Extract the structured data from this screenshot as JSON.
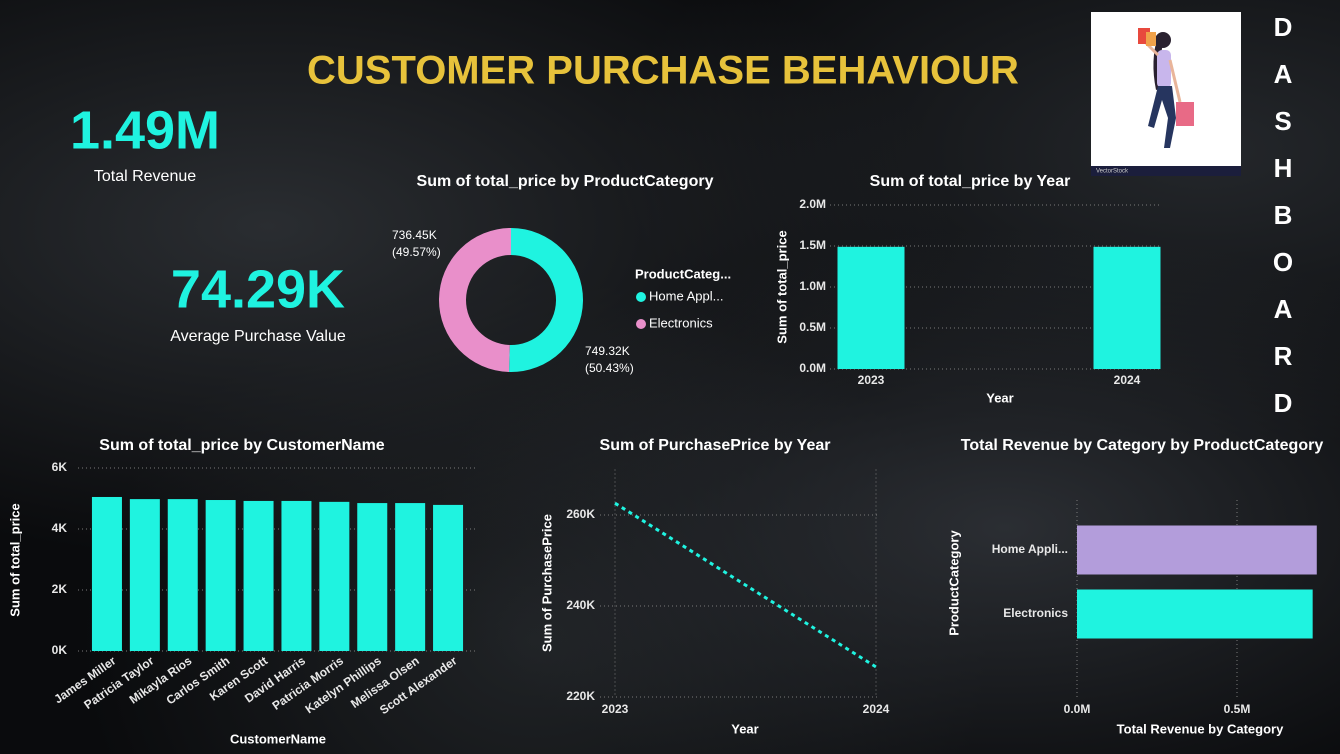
{
  "title": "CUSTOMER PURCHASE BEHAVIOUR",
  "side_title": "DASHBOARD",
  "image_caption": "VectorStock",
  "kpis": [
    {
      "value": "1.49M",
      "label": "Total Revenue"
    },
    {
      "value": "74.29K",
      "label": "Average Purchase Value"
    }
  ],
  "chart_data": [
    {
      "type": "donut",
      "title": "Sum of total_price by ProductCategory",
      "legend_title": "ProductCateg...",
      "categories": [
        "Home Appl...",
        "Electronics"
      ],
      "values": [
        749320,
        736450
      ],
      "value_labels": [
        "749.32K",
        "736.45K"
      ],
      "percent_labels": [
        "(50.43%)",
        "(49.57%)"
      ],
      "colors": [
        "#1ff3e0",
        "#e98fca"
      ]
    },
    {
      "type": "bar",
      "title": "Sum of total_price by Year",
      "xlabel": "Year",
      "ylabel": "Sum of total_price",
      "categories": [
        "2023",
        "2024"
      ],
      "values": [
        1490000,
        1490000
      ],
      "color": "#1ff3e0",
      "ylim": [
        0,
        2000000
      ],
      "yticks": [
        {
          "value": 0,
          "label": "0.0M"
        },
        {
          "value": 500000,
          "label": "0.5M"
        },
        {
          "value": 1000000,
          "label": "1.0M"
        },
        {
          "value": 1500000,
          "label": "1.5M"
        },
        {
          "value": 2000000,
          "label": "2.0M"
        }
      ],
      "grid": true
    },
    {
      "type": "bar",
      "title": "Sum of total_price by CustomerName",
      "xlabel": "CustomerName",
      "ylabel": "Sum of total_price",
      "categories": [
        "James Miller",
        "Patricia Taylor",
        "Mikayla Rios",
        "Carlos Smith",
        "Karen Scott",
        "David Harris",
        "Patricia Morris",
        "Katelyn Phillips",
        "Melissa Olsen",
        "Scott Alexander"
      ],
      "values": [
        5050,
        4980,
        4980,
        4950,
        4920,
        4920,
        4890,
        4850,
        4850,
        4790
      ],
      "color": "#1ff3e0",
      "ylim": [
        0,
        6000
      ],
      "yticks": [
        {
          "value": 0,
          "label": "0K"
        },
        {
          "value": 2000,
          "label": "2K"
        },
        {
          "value": 4000,
          "label": "4K"
        },
        {
          "value": 6000,
          "label": "6K"
        }
      ],
      "grid": true
    },
    {
      "type": "line",
      "title": "Sum of PurchasePrice by Year",
      "xlabel": "Year",
      "ylabel": "Sum of PurchasePrice",
      "x": [
        2023,
        2024
      ],
      "values": [
        262600,
        226600
      ],
      "color": "#1ff3e0",
      "line_style": "dotted",
      "xlim": [
        2023,
        2024
      ],
      "xticks": [
        2023,
        2024
      ],
      "ylim": [
        220000,
        270000
      ],
      "yticks": [
        {
          "value": 220000,
          "label": "220K"
        },
        {
          "value": 240000,
          "label": "240K"
        },
        {
          "value": 260000,
          "label": "260K"
        }
      ],
      "grid": true
    },
    {
      "type": "hbar",
      "title": "Total Revenue by Category by ProductCategory",
      "xlabel": "Total Revenue by Category",
      "ylabel": "ProductCategory",
      "categories": [
        "Home Appli...",
        "Electronics"
      ],
      "values": [
        749320,
        736450
      ],
      "colors": [
        "#b39ddb",
        "#1ff3e0"
      ],
      "xlim": [
        0,
        800000
      ],
      "xticks": [
        {
          "value": 0,
          "label": "0.0M"
        },
        {
          "value": 500000,
          "label": "0.5M"
        }
      ],
      "grid": true
    }
  ]
}
